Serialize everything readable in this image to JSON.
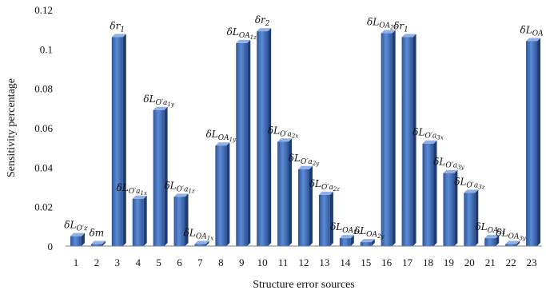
{
  "chart_data": {
    "type": "bar",
    "title": "",
    "xlabel": "Structure error sources",
    "ylabel": "Sensitivity percentage",
    "ylim": [
      0,
      0.12
    ],
    "yticks": [
      "0",
      "0.02",
      "0.04",
      "0.06",
      "0.08",
      "0.1",
      "0.12"
    ],
    "grid": false,
    "legend": "none",
    "bar_color": "#4472C4",
    "categories": [
      "1",
      "2",
      "3",
      "4",
      "5",
      "6",
      "7",
      "8",
      "9",
      "10",
      "11",
      "12",
      "13",
      "14",
      "15",
      "16",
      "17",
      "18",
      "19",
      "20",
      "21",
      "22",
      "23"
    ],
    "values": [
      0.005,
      0.001,
      0.106,
      0.024,
      0.069,
      0.025,
      0.001,
      0.051,
      0.103,
      0.109,
      0.053,
      0.039,
      0.026,
      0.004,
      0.002,
      0.108,
      0.106,
      0.052,
      0.037,
      0.027,
      0.004,
      0.001,
      0.104
    ],
    "bar_labels": [
      {
        "base": "δL",
        "sub": "O′z",
        "sub2": ""
      },
      {
        "base": "δm",
        "sub": "",
        "sub2": ""
      },
      {
        "base": "δr",
        "sub": "1",
        "sub2": ""
      },
      {
        "base": "δL",
        "sub": "O′a",
        "sub2": "1x"
      },
      {
        "base": "δL",
        "sub": "O′a",
        "sub2": "1y"
      },
      {
        "base": "δL",
        "sub": "O′a",
        "sub2": "1z"
      },
      {
        "base": "δL",
        "sub": "OA",
        "sub2": "1x"
      },
      {
        "base": "δL",
        "sub": "OA",
        "sub2": "1y"
      },
      {
        "base": "δL",
        "sub": "OA",
        "sub2": "1z"
      },
      {
        "base": "δr",
        "sub": "2",
        "sub2": ""
      },
      {
        "base": "δL",
        "sub": "O′a",
        "sub2": "2x"
      },
      {
        "base": "δL",
        "sub": "O′a",
        "sub2": "2y"
      },
      {
        "base": "δL",
        "sub": "O′a",
        "sub2": "2z"
      },
      {
        "base": "δL",
        "sub": "OA",
        "sub2": "2x"
      },
      {
        "base": "δL",
        "sub": "OA",
        "sub2": "2y"
      },
      {
        "base": "δL",
        "sub": "OA",
        "sub2": "2z"
      },
      {
        "base": "δr",
        "sub": "1",
        "sub2": ""
      },
      {
        "base": "δL",
        "sub": "O′a",
        "sub2": "3x"
      },
      {
        "base": "δL",
        "sub": "O′a",
        "sub2": "3y"
      },
      {
        "base": "δL",
        "sub": "O′a",
        "sub2": "3z"
      },
      {
        "base": "δL",
        "sub": "OA",
        "sub2": "3x"
      },
      {
        "base": "δL",
        "sub": "OA",
        "sub2": "3y"
      },
      {
        "base": "δL",
        "sub": "OA",
        "sub2": ""
      }
    ]
  }
}
